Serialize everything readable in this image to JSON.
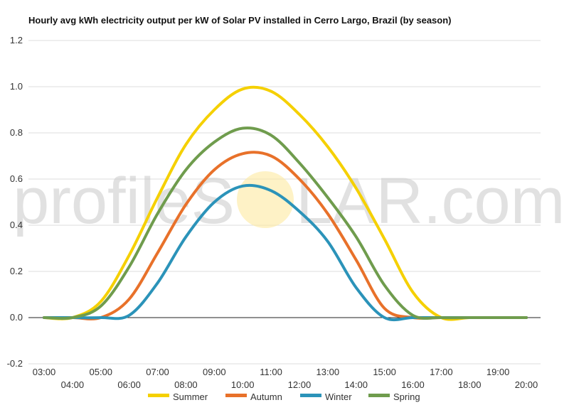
{
  "colors": {
    "summer": "#f5d000",
    "autumn": "#e8712a",
    "winter": "#2b93b9",
    "spring": "#6f9c4d",
    "grid": "#dddddd",
    "zero_line": "#222222",
    "watermark": "#c8c8c8",
    "sun": "#fde9a0"
  },
  "watermark": {
    "left": "profileS",
    "right": "LAR.com"
  },
  "chart_data": {
    "type": "line",
    "title": "Hourly avg kWh electricity output per kW of Solar PV installed in Cerro Largo, Brazil (by season)",
    "xlabel": "",
    "ylabel": "",
    "categories": [
      "03:00",
      "04:00",
      "05:00",
      "06:00",
      "07:00",
      "08:00",
      "09:00",
      "10:00",
      "11:00",
      "12:00",
      "13:00",
      "14:00",
      "15:00",
      "16:00",
      "17:00",
      "18:00",
      "19:00",
      "20:00"
    ],
    "x_tick_labels_upper": [
      "03:00",
      "05:00",
      "07:00",
      "09:00",
      "11:00",
      "13:00",
      "15:00",
      "17:00",
      "19:00"
    ],
    "x_tick_labels_lower": [
      "04:00",
      "06:00",
      "08:00",
      "10:00",
      "12:00",
      "14:00",
      "16:00",
      "18:00",
      "20:00"
    ],
    "y_ticks": [
      "-0.2",
      "0.0",
      "0.2",
      "0.4",
      "0.6",
      "0.8",
      "1.0",
      "1.2"
    ],
    "ylim": [
      -0.2,
      1.2
    ],
    "grid": true,
    "legend_position": "bottom",
    "series": [
      {
        "name": "Summer",
        "color_key": "summer",
        "values": [
          0.0,
          0.0,
          0.07,
          0.27,
          0.52,
          0.75,
          0.9,
          0.99,
          0.98,
          0.88,
          0.74,
          0.56,
          0.34,
          0.11,
          0.0,
          0.0,
          0.0,
          0.0
        ]
      },
      {
        "name": "Autumn",
        "color_key": "autumn",
        "values": [
          0.0,
          0.0,
          0.0,
          0.08,
          0.28,
          0.49,
          0.64,
          0.71,
          0.7,
          0.6,
          0.45,
          0.25,
          0.04,
          0.0,
          0.0,
          0.0,
          0.0,
          0.0
        ]
      },
      {
        "name": "Winter",
        "color_key": "winter",
        "values": [
          0.0,
          0.0,
          0.0,
          0.01,
          0.15,
          0.35,
          0.5,
          0.57,
          0.55,
          0.46,
          0.33,
          0.13,
          0.0,
          0.0,
          0.0,
          0.0,
          0.0,
          0.0
        ]
      },
      {
        "name": "Spring",
        "color_key": "spring",
        "values": [
          0.0,
          0.0,
          0.05,
          0.22,
          0.45,
          0.64,
          0.76,
          0.82,
          0.79,
          0.67,
          0.52,
          0.35,
          0.14,
          0.01,
          0.0,
          0.0,
          0.0,
          0.0
        ]
      }
    ]
  }
}
